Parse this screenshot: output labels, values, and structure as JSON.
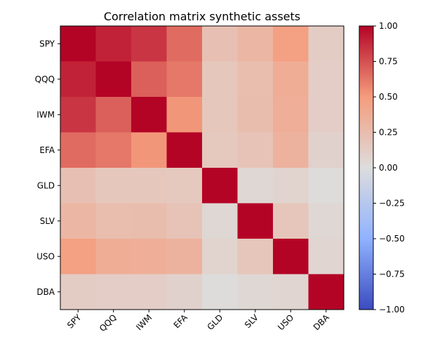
{
  "chart_data": {
    "type": "heatmap",
    "title": "Correlation matrix synthetic assets",
    "xlabel": "",
    "ylabel": "",
    "row_labels": [
      "SPY",
      "QQQ",
      "IWM",
      "EFA",
      "GLD",
      "SLV",
      "USO",
      "DBA"
    ],
    "col_labels": [
      "SPY",
      "QQQ",
      "IWM",
      "EFA",
      "GLD",
      "SLV",
      "USO",
      "DBA"
    ],
    "values": [
      [
        1.0,
        0.9,
        0.84,
        0.66,
        0.22,
        0.3,
        0.47,
        0.13
      ],
      [
        0.9,
        1.0,
        0.7,
        0.62,
        0.17,
        0.24,
        0.37,
        0.12
      ],
      [
        0.84,
        0.7,
        1.0,
        0.52,
        0.17,
        0.25,
        0.36,
        0.12
      ],
      [
        0.66,
        0.62,
        0.52,
        1.0,
        0.16,
        0.2,
        0.33,
        0.09
      ],
      [
        0.22,
        0.17,
        0.17,
        0.16,
        1.0,
        0.05,
        0.08,
        0.01
      ],
      [
        0.3,
        0.24,
        0.25,
        0.2,
        0.05,
        1.0,
        0.18,
        0.05
      ],
      [
        0.47,
        0.37,
        0.36,
        0.33,
        0.08,
        0.18,
        1.0,
        0.06
      ],
      [
        0.13,
        0.12,
        0.12,
        0.09,
        0.01,
        0.05,
        0.06,
        1.0
      ]
    ],
    "colormap": "coolwarm",
    "vmin": -1.0,
    "vmax": 1.0,
    "colorbar_ticks": [
      "1.00",
      "0.75",
      "0.50",
      "0.25",
      "0.00",
      "−0.25",
      "−0.50",
      "−0.75",
      "−1.00"
    ],
    "colorbar_tick_values": [
      1.0,
      0.75,
      0.5,
      0.25,
      0.0,
      -0.25,
      -0.5,
      -0.75,
      -1.0
    ],
    "grid": false
  }
}
